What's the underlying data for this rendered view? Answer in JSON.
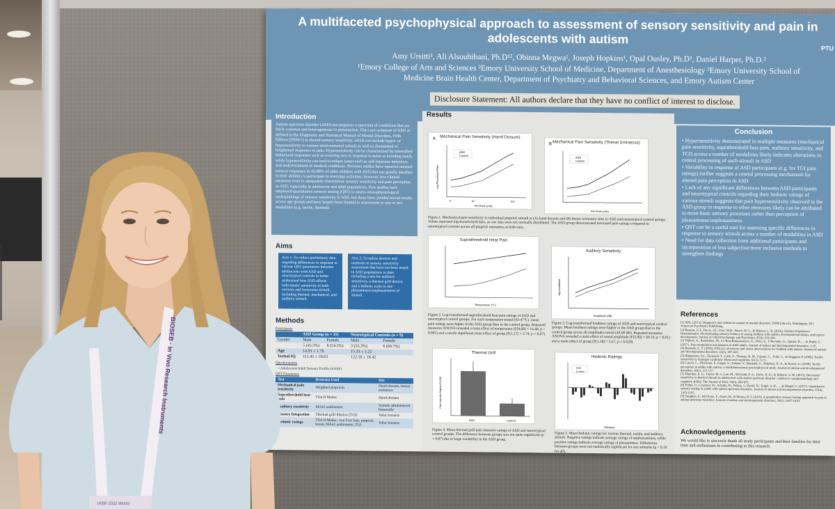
{
  "poster": {
    "title": "A multifaceted psychophysical approach to assessment of sensory sensitivity and pain in adolescents with autism",
    "corner_tag": "PTU",
    "authors": "Amy Ursitti¹, Ali Alsouhibani, Ph.D¹², Obinna Megwa¹, Joseph Hopkins¹, Opal Ousley, Ph.D³, Daniel Harper, Ph.D.²",
    "affiliations": "¹Emory College of Arts and Sciences ²Emory University School of Medicine, Department of Anesthesiology ³Emory University School of Medicine Brain Health Center, Department of Psychiatry and Behavioral Sciences, and Emory Autism Center",
    "disclosure": "Disclosure Statement: All authors declare that they have no conflict of interest to disclose.",
    "introduction": {
      "heading": "Introduction",
      "text": "Autism spectrum disorder (ASD) encompasses a spectrum of conditions that are fairly common and heterogeneous in presentation. One core symptom of ASD as defined in the Diagnostic and Statistical Manual of Mental Disorders, Fifth Edition (DSM-5) is altered sensory sensitivity, which can include hyper- or hyposensitivity to various environmental stimuli as well as diminished or heightened responses to pain. Hypersensitivity can be characterized by intensified behavioral responses such as covering ears in response to noise or avoiding touch, while hyposensitivity can lead to unique issues such as self-injurious behaviors and undertreatment of medical conditions. Previous studies have reported unusual sensory responses in 42-88% of older children with ASD that can greatly interfere in their abilities to participate in everyday activities; however, few clinical measures exist to adequately characterize sensory sensitivity and pain perception in ASD, especially in adolescent and adult populations. Few studies have employed quantitative sensory testing (QST) to assess neurophysiological underpinnings of sensory sensitivity in ASD, but these have yielded mixed results across age groups and have largely been limited to assessment in one or two modalities (e.g. tactile, thermal)."
    },
    "aims": {
      "heading": "Aims",
      "aim1": "Aim 1: To collect preliminary data regarding differences in response to various QST parameters between adolescents with ASD and neurotypical controls to better understand how ASD affects individuals' sensitivity to both noxious and innocuous stimuli, including thermal, mechanical, and auditory stimuli.",
      "aim2": "Aim 2: To utilize devices and methods of sensory sensitivity assessment that have not been tested in ASD populations to date, including a test for auditory sensitivity, a thermal grill device, and a hedonic scale to rate pleasantness/unpleasantness of stimuli."
    },
    "methods": {
      "heading": "Methods",
      "participants_label": "Participants",
      "group_headers": [
        "",
        "ASD Group (n = 11)",
        "Neurotypical Controls (n = 9)"
      ],
      "sex_row": [
        "Gender",
        "Male",
        "Female",
        "Male",
        "Female"
      ],
      "rows": [
        [
          "",
          "5 (45.5%)",
          "6 (54.5%)",
          "3 (33.3%)",
          "6 (66.7%)"
        ],
        [
          "Age",
          "14.91 ± 1.76",
          "",
          "15.33 ± 1.22",
          ""
        ],
        [
          "Verbal IQ",
          "111.45 ± 19.63",
          "",
          "122.50 ± 16.42",
          ""
        ]
      ],
      "questionnaires_label": "Questionnaires",
      "questionnaire": "Adolescent/Adult Sensory Profile (AASP)",
      "qst_label": "QST Parameters",
      "qst_headers": [
        "Test",
        "Device(s) Used",
        "Site"
      ],
      "qst_rows": [
        [
          "Mechanical pain sensitivity",
          "Weighted pinpricks",
          "Hand dorsum, thenar eminence"
        ],
        [
          "Suprathreshold heat pain",
          "TSA II Medoc",
          "Hand dorsum"
        ],
        [
          "Auditory sensitivity",
          "MA41 audiometer",
          "Sounds administered binaurally"
        ],
        [
          "Sensory Integration",
          "Thermal grill illusion (TGI)",
          "Volar forearm"
        ],
        [
          "Hedonic ratings",
          "TSA II Medoc, von Frey hair, pinprick, brush, MA41 audiometer, TGI",
          "Volar forearm"
        ]
      ]
    },
    "results": {
      "heading": "Results",
      "fig1a_title": "Mechanical Pain Sensitivity (Hand Dorsum)",
      "fig1b_title": "Mechanical Pain Sensitivity (Thenar Eminence)",
      "fig1_letters": [
        "A",
        "B"
      ],
      "fig1_xlabel": "Pin Prick (mN)",
      "fig1_ylabel": "log Perceived Pain",
      "fig1_ticks": [
        "8",
        "16",
        "32",
        "64",
        "128",
        "256",
        "512"
      ],
      "fig1_caption": "Figure 1. Mechanical pain sensitivity to individual pinprick stimuli at (A) hand dorsum and (B) thenar eminence sites in ASD and neurotypical control groups. Values represent log-transformed data, as raw data were not normally distributed. The ASD group demonstrated increased pain ratings compared to neurotypical controls across all pinprick intensities at both sites.",
      "fig2_title": "Suprathreshold Heat Pain",
      "fig2_xlabel": "Temperature (°C)",
      "fig2_caption": "Figure 2. Log-transformed suprathreshold heat pain ratings of ASD and neurotypical control groups. For each temperature tested (43-47°C), mean pain ratings were higher in the ASD group than in the control group. Repeated measures ANOVA revealed a main effect of temperature (F[4,68] = 16.48, p < 0.001) and a nearly significant main effect of group (F[1,17] = 3.74, p = 0.07).",
      "fig3_title": "Auditory Sensitivity",
      "fig3_xlabel": "Amplitude (dB)",
      "fig3_ylabel": "log Loudness",
      "fig3_caption": "Figure 3. Log-transformed loudness ratings of ASD and neurotypical control groups. Mean loudness ratings were higher in the ASD group than in the control group across all amplitudes tested (40-90 dB). Repeated measures ANOVA revealed a main effect of sound amplitude (F[5,90] = 69.10, p < 0.01) and a main effect of group (F[1,18] = 5.67, p = 0.029).",
      "fig4_title": "Thermal Grill",
      "fig4_ylabel": "Pain Intensity Rating (0-100)",
      "fig4_caption": "Figure 4. Mean thermal grill pain intensity ratings of ASD and neurotypical control groups. The difference between groups was not quite significant (p = 0.07) due to large variability in the ASD group.",
      "fig5_title": "Hedonic Ratings",
      "fig5_xlabel": "Stimulus",
      "fig5_caption": "Figure 5. Mean hedonic ratings for various thermal, tactile, and auditory stimuli. Negative ratings indicate average ratings of unpleasantness, while positive ratings indicate average ratings of pleasantness. Differences between groups were not statistically significant for any stimulus (p > 0.10 for all).",
      "legend": [
        "ASD",
        "Control"
      ]
    },
    "conclusion": {
      "heading": "Conclusion",
      "items": [
        "Hypersensitivity demonstrated in multiple measures (mechanical pain sensitivity, suprathreshold heat pain, auditory sensitivity, and TGI) across a number of modalities likely indicates alterations in central processing of such stimuli in ASD",
        "Variability in response of ASD participants (e.g. for TGI pain ratings) further suggests a central processing mechanism for altered pain perception in ASD",
        "Lack of any significant differences between ASD participants and neurotypical controls regarding their hedonic ratings of various stimuli suggests that pain hypersensitivity observed in the ASD group in response to other measures likely can be attributed to more basic sensory processes rather than perception of pleasantness/unpleasantness",
        "QST can be a useful tool for assessing specific differences in response to sensory stimuli across a number of modalities in ASD",
        "Need for data collection from additional participants and incorporation of less subjective/more inclusive methods to strengthen findings"
      ]
    },
    "references": {
      "heading": "References",
      "items": [
        "[1] APA. (2013). Diagnostic and statistical manual of mental disorders: DSM (5th ed.). Washington, DC: American Psychiatric Publishing.",
        "[2] Benson, G.T., Davis, J.E., Foss, M.D., Bruce, W. L., & Watson, L. R. (2016). Sensory Experience Questionnaire: discriminating sensory features in young children with autism, developmental delays, and typical development. Journal of Child Psychology and Psychiatry, 47(6), 591-601.",
        "[3] Dubois, A., Rondeleux, M., Le Bon-Bonnemaison, A., Dion, A., L'Heveder, G., Quinio, B., ... & Bodet, C. (2017). Pain modulation mechanisms in ASD adults. Journal of autism and developmental disorders, 1-10.",
        "[4] Baranek, G. T. (2002). Efficacy of sensory and motor interventions for children with autism. Journal of autism and developmental disorders, 32(5), 397-422.",
        "[5] Blakemore, S.J., Tavassoli, T., Calò, S., Thomas, R. M., Catmur, C., Frith, U., & Haggard, P. (2006). Tactile sensitivity in Asperger syndrome. Brain and cognition, 61(1), 5-13.",
        "[6] Cascio, C., McGlone, F., Folger, S., Tannan, V., Baranek, G., Pelphrey, K. A., & Essick, G. (2008). Tactile perception in adults with autism: a multidimensional psychophysical study. Journal of autism and developmental disorders, 38(1), 127-137.",
        "[7] Duerden, E. G., Taylor, M. J., Lee, M., McGrath, P. A., Davis, K. D., & Roberts, S. W. (2015). Decreased sensitivity to thermal stimuli in adolescents with autism spectrum disorder: relation to symptomatology and cognitive ability. The Journal of Pain, 16(5), 463-471.",
        "[8] Fründ, O., Gruskow, W., Schölte, D., Pelkey, J., David, N., Engel, A. K., ... & Riegel, U. (2017). Quantitative sensory testing in adults with autism spectrum disorders. Journal of autism and developmental disorders, 47(4), 1183-1192.",
        "[9] Vaughan, S., McGlone, F., Poole, H., & Moore, D. J. (2019). A quantitative sensory testing approach to pain in autism spectrum disorders. Journal of autism and developmental disorders, 50(5), 1607-1620."
      ]
    },
    "acknowledgements": {
      "heading": "Acknowledgements",
      "text": "We would like to sincerely thank all study participants and their families for their time and enthusiasm in contributing to this research."
    }
  },
  "lanyard": {
    "text": "BIOSEB · In Vivo Research Instruments",
    "badge": "IASP 2022 World"
  },
  "colors": {
    "poster_blue": "#6f95b4",
    "aim_blue": "#2f6ea8",
    "board_gray": "#84807a",
    "hair": "#c9a36a",
    "shirt": "#cfdce4"
  }
}
